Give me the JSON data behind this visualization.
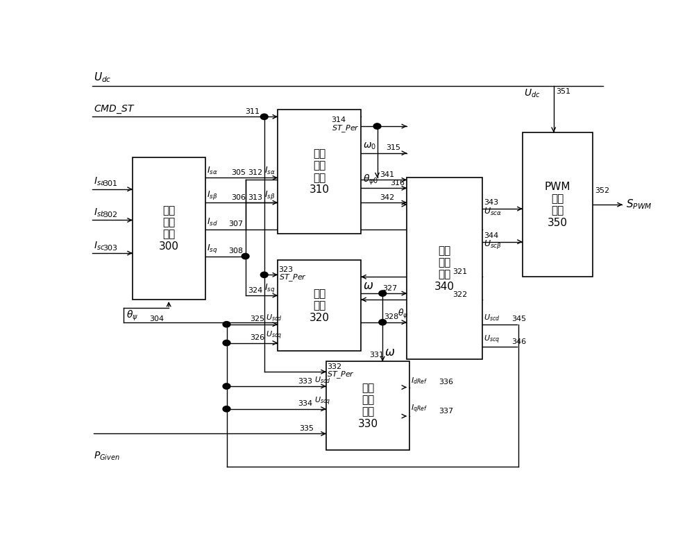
{
  "bg_color": "#ffffff",
  "line_color": "#000000",
  "blocks": {
    "B300": [
      0.08,
      0.38,
      0.14,
      0.32
    ],
    "B310": [
      0.35,
      0.6,
      0.16,
      0.28
    ],
    "B320": [
      0.35,
      0.3,
      0.16,
      0.25
    ],
    "B330": [
      0.44,
      0.06,
      0.16,
      0.28
    ],
    "B340": [
      0.6,
      0.28,
      0.15,
      0.37
    ],
    "B350": [
      0.8,
      0.5,
      0.14,
      0.36
    ]
  },
  "block_labels": {
    "B300": "定子\n电流\n计算\n300",
    "B310": "初始\n磁链\n计算\n310",
    "B320": "磁链\n锁相\n320",
    "B330": "参考\n电流\n计算\n330",
    "B340": "电流\n闭环\n控制\n340",
    "B350": "PWM\n调制\n策略\n350"
  }
}
